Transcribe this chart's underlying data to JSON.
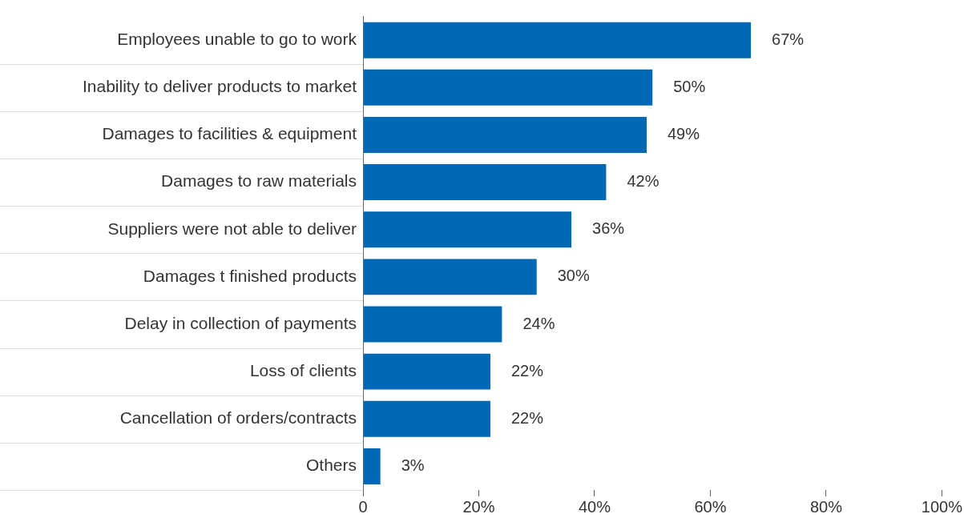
{
  "chart_data": {
    "type": "bar",
    "orientation": "horizontal",
    "categories": [
      "Employees unable to go to work",
      "Inability to deliver products to market",
      "Damages to facilities & equipment",
      "Damages to raw materials",
      "Suppliers were not able to deliver",
      "Damages t finished products",
      "Delay in collection of payments",
      "Loss of clients",
      "Cancellation of orders/contracts",
      "Others"
    ],
    "values": [
      67,
      50,
      49,
      42,
      36,
      30,
      24,
      22,
      22,
      3
    ],
    "value_labels": [
      "67%",
      "50%",
      "49%",
      "42%",
      "36%",
      "30%",
      "24%",
      "22%",
      "22%",
      "3%"
    ],
    "color": "#0068b4",
    "xlim": [
      0,
      100
    ],
    "xticks": [
      0,
      {
        "value": 20,
        "label": "20%"
      },
      {
        "value": 40,
        "label": "40%"
      },
      {
        "value": 60,
        "label": "60%"
      },
      {
        "value": 80,
        "label": "80%"
      },
      {
        "value": 100,
        "label": "100%"
      }
    ],
    "grid": false,
    "legend": false
  }
}
